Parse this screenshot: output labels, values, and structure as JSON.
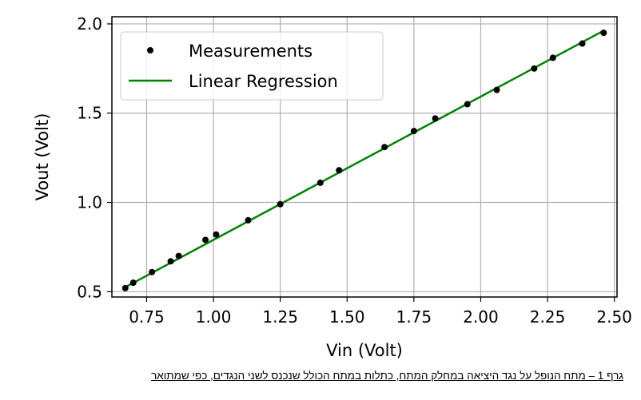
{
  "chart_data": {
    "type": "scatter",
    "xlabel": "Vin (Volt)",
    "ylabel": "Vout (Volt)",
    "xlim": [
      0.62,
      2.51
    ],
    "ylim": [
      0.47,
      2.04
    ],
    "xticks": [
      0.75,
      1.0,
      1.25,
      1.5,
      1.75,
      2.0,
      2.25,
      2.5
    ],
    "xtick_labels": [
      "0.75",
      "1.00",
      "1.25",
      "1.50",
      "1.75",
      "2.00",
      "2.25",
      "2.50"
    ],
    "yticks": [
      0.5,
      1.0,
      1.5,
      2.0
    ],
    "ytick_labels": [
      "0.5",
      "1.0",
      "1.5",
      "2.0"
    ],
    "grid": true,
    "legend_position": "top-left",
    "series": [
      {
        "name": "Measurements",
        "kind": "scatter",
        "color": "#000000",
        "x": [
          0.67,
          0.7,
          0.77,
          0.84,
          0.87,
          0.97,
          1.01,
          1.13,
          1.25,
          1.4,
          1.47,
          1.64,
          1.75,
          1.83,
          1.95,
          2.06,
          2.2,
          2.27,
          2.38,
          2.46
        ],
        "y": [
          0.52,
          0.55,
          0.61,
          0.67,
          0.7,
          0.79,
          0.82,
          0.9,
          0.99,
          1.11,
          1.18,
          1.31,
          1.4,
          1.47,
          1.55,
          1.63,
          1.75,
          1.81,
          1.89,
          1.95
        ]
      },
      {
        "name": "Linear Regression",
        "kind": "line",
        "color": "#008000",
        "x": [
          0.67,
          2.46
        ],
        "y": [
          0.525,
          1.962
        ]
      }
    ]
  },
  "caption": "גרף 1 – מתח הנופל על נגד היציאה במחלק המתח, כתלות במתח הכולל שנכנס לשני הנגדים, כפי שמתואר"
}
